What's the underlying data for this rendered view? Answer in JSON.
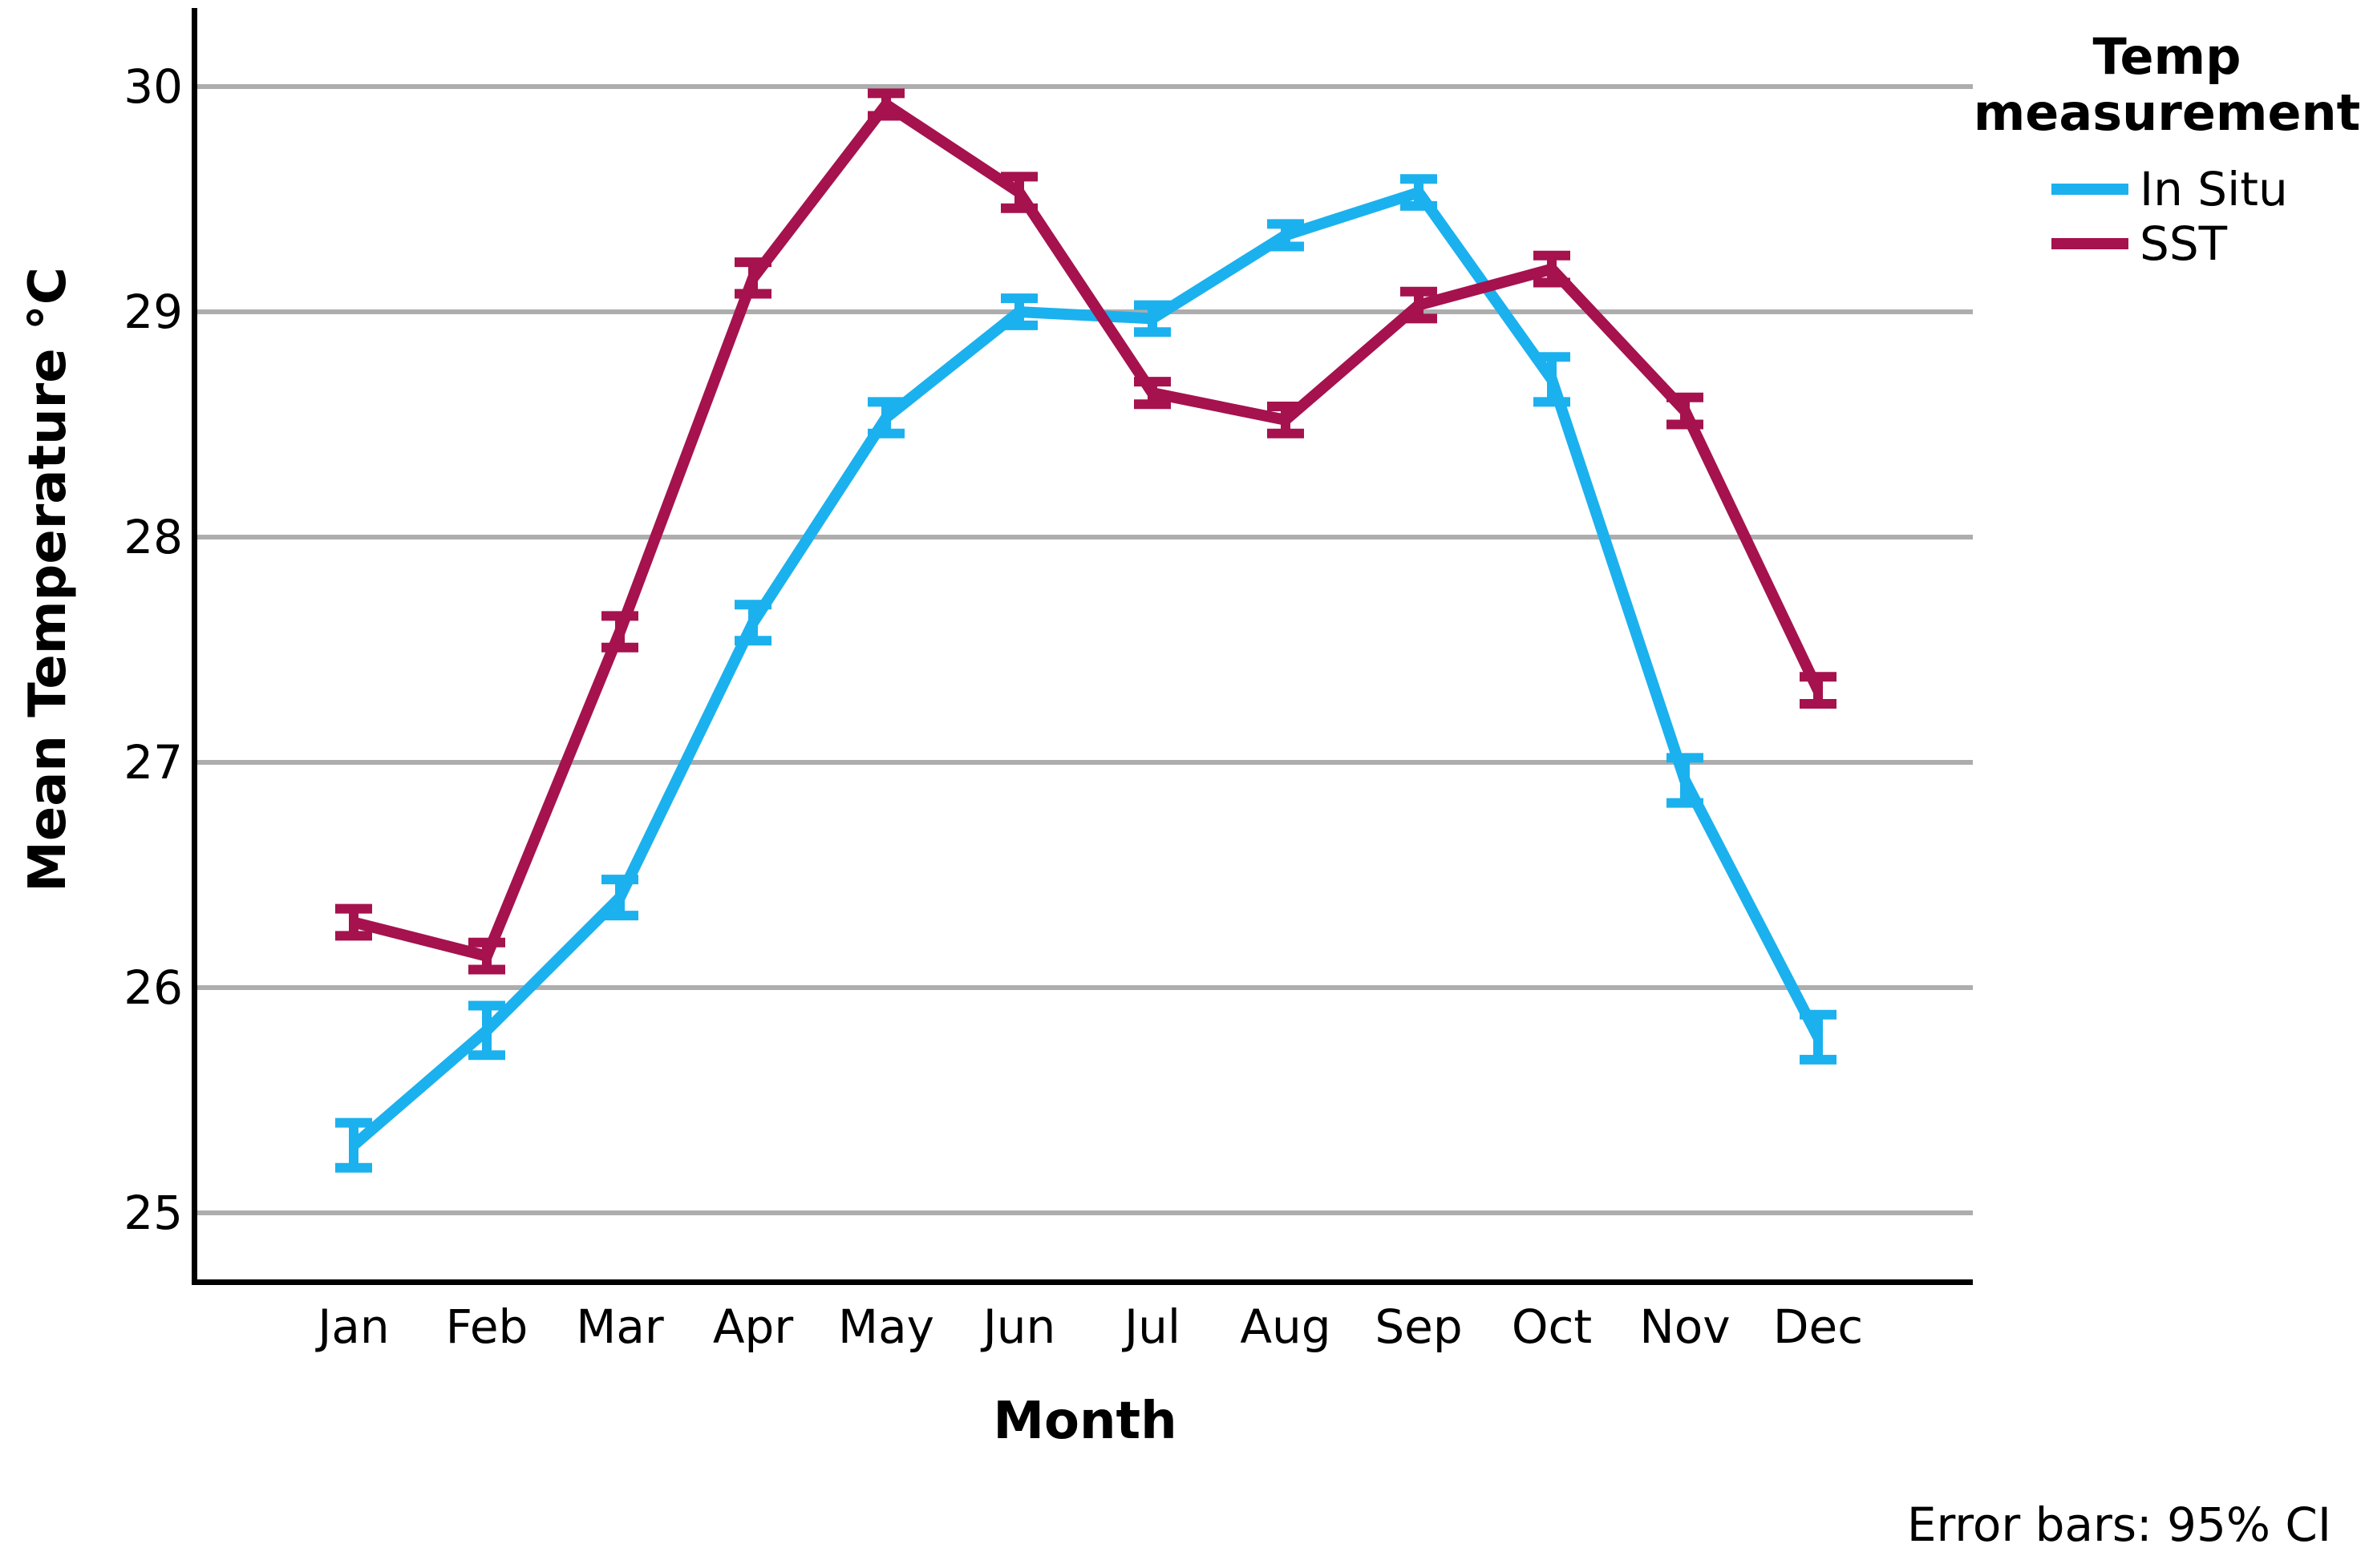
{
  "figure": {
    "footnote": "Error bars: 95% CI"
  },
  "y_axis": {
    "title": "Mean Temperature °C"
  },
  "x_axis": {
    "title": "Month"
  },
  "legend": {
    "title_lines": [
      "Temp",
      "measurement"
    ]
  },
  "colors": {
    "in_situ": "#1BB1EE",
    "sst": "#A5124E",
    "gridline": "#ADADAD",
    "axis": "#000000"
  },
  "chart_data": {
    "type": "line",
    "title": "",
    "xlabel": "Month",
    "ylabel": "Mean Temperature °C",
    "categories": [
      "Jan",
      "Feb",
      "Mar",
      "Apr",
      "May",
      "Jun",
      "Jul",
      "Aug",
      "Sep",
      "Oct",
      "Nov",
      "Dec"
    ],
    "yticks": [
      30,
      29,
      28,
      27,
      26,
      25
    ],
    "ylim": [
      24.7,
      30.35
    ],
    "grid": "horizontal",
    "legend_position": "right",
    "error_bars": "95% CI",
    "series": [
      {
        "name": "In Situ",
        "color": "#1BB1EE",
        "values": [
          25.3,
          25.81,
          26.4,
          27.62,
          28.53,
          29.0,
          28.97,
          29.34,
          29.53,
          28.7,
          26.92,
          25.78
        ],
        "ci95_half": [
          0.1,
          0.11,
          0.08,
          0.08,
          0.07,
          0.06,
          0.06,
          0.05,
          0.06,
          0.1,
          0.1,
          0.1
        ]
      },
      {
        "name": "SST",
        "color": "#A5124E",
        "values": [
          26.29,
          26.14,
          27.58,
          29.15,
          29.92,
          29.53,
          28.64,
          28.52,
          29.03,
          29.19,
          28.56,
          27.32
        ],
        "ci95_half": [
          0.06,
          0.06,
          0.07,
          0.07,
          0.05,
          0.07,
          0.05,
          0.06,
          0.06,
          0.06,
          0.06,
          0.06
        ]
      }
    ]
  }
}
